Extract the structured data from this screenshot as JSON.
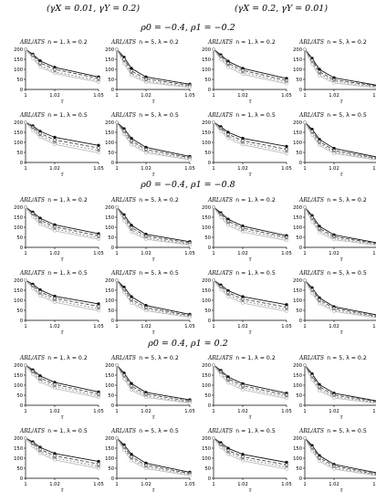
{
  "headers": {
    "left": "(γX = 0.01, γY = 0.2)",
    "right": "(γX = 0.2, γY = 0.01)"
  },
  "sections": [
    {
      "label": "ρ0 = −0.4, ρ1 = −0.2"
    },
    {
      "label": "ρ0 = −0.4, ρ1 = −0.8"
    },
    {
      "label": "ρ0 = 0.4, ρ1 = 0.2"
    }
  ],
  "axes": {
    "ylabel": "ARL/ATS",
    "xlabel": "τ",
    "yticks": [
      "0",
      "50",
      "100",
      "150",
      "200"
    ],
    "xticks": [
      "1",
      "1.02",
      "1.05"
    ],
    "xlim": [
      1,
      1.05
    ],
    "ylim": [
      0,
      200
    ]
  },
  "colors": {
    "axis": "#000000",
    "s1": "#111111",
    "s2": "#444444",
    "s3": "#888888",
    "s4": "#bbbbbb"
  },
  "chart_data": [
    {
      "type": "line",
      "section": 0,
      "side": "left",
      "title": "n = 1, λ = 0.2",
      "x": [
        1,
        1.005,
        1.01,
        1.02,
        1.05
      ],
      "series": [
        {
          "values": [
            200,
            175,
            142,
            110,
            62
          ]
        },
        {
          "values": [
            200,
            170,
            132,
            100,
            55
          ]
        },
        {
          "values": [
            200,
            162,
            120,
            88,
            44
          ]
        },
        {
          "values": [
            200,
            155,
            112,
            80,
            36
          ]
        }
      ]
    },
    {
      "type": "line",
      "section": 0,
      "side": "left",
      "title": "n = 5, λ = 0.2",
      "x": [
        1,
        1.005,
        1.01,
        1.02,
        1.05
      ],
      "series": [
        {
          "values": [
            200,
            160,
            105,
            62,
            26
          ]
        },
        {
          "values": [
            200,
            150,
            92,
            52,
            20
          ]
        },
        {
          "values": [
            200,
            138,
            80,
            42,
            14
          ]
        },
        {
          "values": [
            200,
            128,
            70,
            35,
            10
          ]
        }
      ]
    },
    {
      "type": "line",
      "section": 0,
      "side": "right",
      "title": "n = 1, λ = 0.2",
      "x": [
        1,
        1.005,
        1.01,
        1.02,
        1.05
      ],
      "series": [
        {
          "values": [
            200,
            172,
            140,
            105,
            55
          ]
        },
        {
          "values": [
            200,
            165,
            130,
            95,
            45
          ]
        },
        {
          "values": [
            200,
            158,
            120,
            85,
            36
          ]
        },
        {
          "values": [
            200,
            150,
            110,
            75,
            28
          ]
        }
      ]
    },
    {
      "type": "line",
      "section": 0,
      "side": "right",
      "title": "n = 5, λ = 0.2",
      "x": [
        1,
        1.005,
        1.01,
        1.02,
        1.05
      ],
      "series": [
        {
          "values": [
            200,
            155,
            100,
            58,
            20
          ]
        },
        {
          "values": [
            200,
            145,
            88,
            48,
            16
          ]
        },
        {
          "values": [
            200,
            135,
            78,
            40,
            12
          ]
        },
        {
          "values": [
            200,
            125,
            68,
            32,
            8
          ]
        }
      ]
    },
    {
      "type": "line",
      "section": 0,
      "side": "left",
      "title": "n = 1, λ = 0.5",
      "x": [
        1,
        1.005,
        1.01,
        1.02,
        1.05
      ],
      "series": [
        {
          "values": [
            200,
            182,
            155,
            125,
            85
          ]
        },
        {
          "values": [
            200,
            175,
            145,
            112,
            72
          ]
        },
        {
          "values": [
            200,
            168,
            135,
            100,
            60
          ]
        },
        {
          "values": [
            200,
            160,
            125,
            90,
            48
          ]
        }
      ]
    },
    {
      "type": "line",
      "section": 0,
      "side": "left",
      "title": "n = 5, λ = 0.5",
      "x": [
        1,
        1.005,
        1.01,
        1.02,
        1.05
      ],
      "series": [
        {
          "values": [
            200,
            168,
            120,
            75,
            30
          ]
        },
        {
          "values": [
            200,
            158,
            108,
            65,
            24
          ]
        },
        {
          "values": [
            200,
            148,
            98,
            56,
            18
          ]
        },
        {
          "values": [
            200,
            140,
            88,
            48,
            14
          ]
        }
      ]
    },
    {
      "type": "line",
      "section": 0,
      "side": "right",
      "title": "n = 1, λ = 0.5",
      "x": [
        1,
        1.005,
        1.01,
        1.02,
        1.05
      ],
      "series": [
        {
          "values": [
            200,
            178,
            150,
            120,
            80
          ]
        },
        {
          "values": [
            200,
            170,
            140,
            108,
            66
          ]
        },
        {
          "values": [
            200,
            162,
            130,
            98,
            54
          ]
        },
        {
          "values": [
            200,
            155,
            120,
            88,
            44
          ]
        }
      ]
    },
    {
      "type": "line",
      "section": 0,
      "side": "right",
      "title": "n = 5, λ = 0.5",
      "x": [
        1,
        1.005,
        1.01,
        1.02,
        1.05
      ],
      "series": [
        {
          "values": [
            200,
            165,
            115,
            70,
            26
          ]
        },
        {
          "values": [
            200,
            155,
            104,
            60,
            20
          ]
        },
        {
          "values": [
            200,
            145,
            94,
            52,
            16
          ]
        },
        {
          "values": [
            200,
            136,
            85,
            45,
            12
          ]
        }
      ]
    },
    {
      "type": "line",
      "section": 1,
      "side": "left",
      "title": "n = 1, λ = 0.2",
      "x": [
        1,
        1.005,
        1.01,
        1.02,
        1.05
      ],
      "series": [
        {
          "values": [
            200,
            175,
            145,
            112,
            68
          ]
        },
        {
          "values": [
            200,
            168,
            135,
            102,
            58
          ]
        },
        {
          "values": [
            200,
            160,
            125,
            92,
            48
          ]
        },
        {
          "values": [
            200,
            152,
            115,
            82,
            40
          ]
        }
      ]
    },
    {
      "type": "line",
      "section": 1,
      "side": "left",
      "title": "n = 5, λ = 0.2",
      "x": [
        1,
        1.005,
        1.01,
        1.02,
        1.05
      ],
      "series": [
        {
          "values": [
            200,
            162,
            110,
            65,
            28
          ]
        },
        {
          "values": [
            200,
            152,
            98,
            56,
            22
          ]
        },
        {
          "values": [
            200,
            142,
            86,
            47,
            16
          ]
        },
        {
          "values": [
            200,
            132,
            76,
            40,
            12
          ]
        }
      ]
    },
    {
      "type": "line",
      "section": 1,
      "side": "right",
      "title": "n = 1, λ = 0.2",
      "x": [
        1,
        1.005,
        1.01,
        1.02,
        1.05
      ],
      "series": [
        {
          "values": [
            200,
            172,
            140,
            106,
            58
          ]
        },
        {
          "values": [
            200,
            165,
            130,
            96,
            50
          ]
        },
        {
          "values": [
            200,
            158,
            120,
            86,
            42
          ]
        },
        {
          "values": [
            200,
            150,
            110,
            76,
            34
          ]
        }
      ]
    },
    {
      "type": "line",
      "section": 1,
      "side": "right",
      "title": "n = 5, λ = 0.2",
      "x": [
        1,
        1.005,
        1.01,
        1.02,
        1.05
      ],
      "series": [
        {
          "values": [
            200,
            158,
            105,
            62,
            22
          ]
        },
        {
          "values": [
            200,
            148,
            94,
            53,
            18
          ]
        },
        {
          "values": [
            200,
            138,
            84,
            45,
            14
          ]
        },
        {
          "values": [
            200,
            128,
            74,
            38,
            10
          ]
        }
      ]
    },
    {
      "type": "line",
      "section": 1,
      "side": "left",
      "title": "n = 1, λ = 0.5",
      "x": [
        1,
        1.005,
        1.01,
        1.02,
        1.05
      ],
      "series": [
        {
          "values": [
            200,
            180,
            152,
            120,
            82
          ]
        },
        {
          "values": [
            200,
            172,
            142,
            110,
            70
          ]
        },
        {
          "values": [
            200,
            165,
            132,
            100,
            58
          ]
        },
        {
          "values": [
            200,
            158,
            122,
            90,
            48
          ]
        }
      ]
    },
    {
      "type": "line",
      "section": 1,
      "side": "left",
      "title": "n = 5, λ = 0.5",
      "x": [
        1,
        1.005,
        1.01,
        1.02,
        1.05
      ],
      "series": [
        {
          "values": [
            200,
            165,
            118,
            74,
            30
          ]
        },
        {
          "values": [
            200,
            155,
            106,
            64,
            24
          ]
        },
        {
          "values": [
            200,
            146,
            96,
            56,
            19
          ]
        },
        {
          "values": [
            200,
            138,
            86,
            48,
            15
          ]
        }
      ]
    },
    {
      "type": "line",
      "section": 1,
      "side": "right",
      "title": "n = 1, λ = 0.5",
      "x": [
        1,
        1.005,
        1.01,
        1.02,
        1.05
      ],
      "series": [
        {
          "values": [
            200,
            176,
            148,
            118,
            78
          ]
        },
        {
          "values": [
            200,
            168,
            138,
            106,
            66
          ]
        },
        {
          "values": [
            200,
            160,
            128,
            96,
            55
          ]
        },
        {
          "values": [
            200,
            153,
            118,
            86,
            45
          ]
        }
      ]
    },
    {
      "type": "line",
      "section": 1,
      "side": "right",
      "title": "n = 5, λ = 0.5",
      "x": [
        1,
        1.005,
        1.01,
        1.02,
        1.05
      ],
      "series": [
        {
          "values": [
            200,
            162,
            112,
            68,
            26
          ]
        },
        {
          "values": [
            200,
            152,
            102,
            60,
            20
          ]
        },
        {
          "values": [
            200,
            143,
            92,
            52,
            16
          ]
        },
        {
          "values": [
            200,
            134,
            83,
            45,
            12
          ]
        }
      ]
    },
    {
      "type": "line",
      "section": 2,
      "side": "left",
      "title": "n = 1, λ = 0.2",
      "x": [
        1,
        1.005,
        1.01,
        1.02,
        1.05
      ],
      "series": [
        {
          "values": [
            200,
            176,
            146,
            114,
            66
          ]
        },
        {
          "values": [
            200,
            169,
            136,
            104,
            56
          ]
        },
        {
          "values": [
            200,
            161,
            126,
            94,
            46
          ]
        },
        {
          "values": [
            200,
            153,
            116,
            84,
            38
          ]
        }
      ]
    },
    {
      "type": "line",
      "section": 2,
      "side": "left",
      "title": "n = 5, λ = 0.2",
      "x": [
        1,
        1.005,
        1.01,
        1.02,
        1.05
      ],
      "series": [
        {
          "values": [
            200,
            160,
            108,
            64,
            27
          ]
        },
        {
          "values": [
            200,
            150,
            96,
            55,
            21
          ]
        },
        {
          "values": [
            200,
            140,
            85,
            46,
            15
          ]
        },
        {
          "values": [
            200,
            130,
            75,
            39,
            11
          ]
        }
      ]
    },
    {
      "type": "line",
      "section": 2,
      "side": "right",
      "title": "n = 1, λ = 0.2",
      "x": [
        1,
        1.005,
        1.01,
        1.02,
        1.05
      ],
      "series": [
        {
          "values": [
            200,
            173,
            141,
            107,
            60
          ]
        },
        {
          "values": [
            200,
            166,
            131,
            97,
            51
          ]
        },
        {
          "values": [
            200,
            158,
            121,
            87,
            42
          ]
        },
        {
          "values": [
            200,
            151,
            111,
            77,
            34
          ]
        }
      ]
    },
    {
      "type": "line",
      "section": 2,
      "side": "right",
      "title": "n = 5, λ = 0.2",
      "x": [
        1,
        1.005,
        1.01,
        1.02,
        1.05
      ],
      "series": [
        {
          "values": [
            200,
            156,
            103,
            60,
            21
          ]
        },
        {
          "values": [
            200,
            146,
            92,
            51,
            17
          ]
        },
        {
          "values": [
            200,
            136,
            82,
            43,
            13
          ]
        },
        {
          "values": [
            200,
            126,
            72,
            36,
            9
          ]
        }
      ]
    },
    {
      "type": "line",
      "section": 2,
      "side": "left",
      "title": "n = 1, λ = 0.5",
      "x": [
        1,
        1.005,
        1.01,
        1.02,
        1.05
      ],
      "series": [
        {
          "values": [
            200,
            181,
            154,
            123,
            84
          ]
        },
        {
          "values": [
            200,
            174,
            144,
            112,
            71
          ]
        },
        {
          "values": [
            200,
            166,
            134,
            101,
            59
          ]
        },
        {
          "values": [
            200,
            159,
            124,
            91,
            49
          ]
        }
      ]
    },
    {
      "type": "line",
      "section": 2,
      "side": "left",
      "title": "n = 5, λ = 0.5",
      "x": [
        1,
        1.005,
        1.01,
        1.02,
        1.05
      ],
      "series": [
        {
          "values": [
            200,
            166,
            119,
            75,
            30
          ]
        },
        {
          "values": [
            200,
            156,
            107,
            65,
            24
          ]
        },
        {
          "values": [
            200,
            147,
            97,
            56,
            19
          ]
        },
        {
          "values": [
            200,
            139,
            87,
            48,
            14
          ]
        }
      ]
    },
    {
      "type": "line",
      "section": 2,
      "side": "right",
      "title": "n = 1, λ = 0.5",
      "x": [
        1,
        1.005,
        1.01,
        1.02,
        1.05
      ],
      "series": [
        {
          "values": [
            200,
            177,
            149,
            119,
            79
          ]
        },
        {
          "values": [
            200,
            169,
            139,
            107,
            67
          ]
        },
        {
          "values": [
            200,
            161,
            129,
            97,
            56
          ]
        },
        {
          "values": [
            200,
            154,
            119,
            87,
            46
          ]
        }
      ]
    },
    {
      "type": "line",
      "section": 2,
      "side": "right",
      "title": "n = 5, λ = 0.5",
      "x": [
        1,
        1.005,
        1.01,
        1.02,
        1.05
      ],
      "series": [
        {
          "values": [
            200,
            163,
            113,
            69,
            26
          ]
        },
        {
          "values": [
            200,
            153,
            103,
            61,
            20
          ]
        },
        {
          "values": [
            200,
            144,
            93,
            53,
            16
          ]
        },
        {
          "values": [
            200,
            135,
            84,
            46,
            12
          ]
        }
      ]
    }
  ]
}
